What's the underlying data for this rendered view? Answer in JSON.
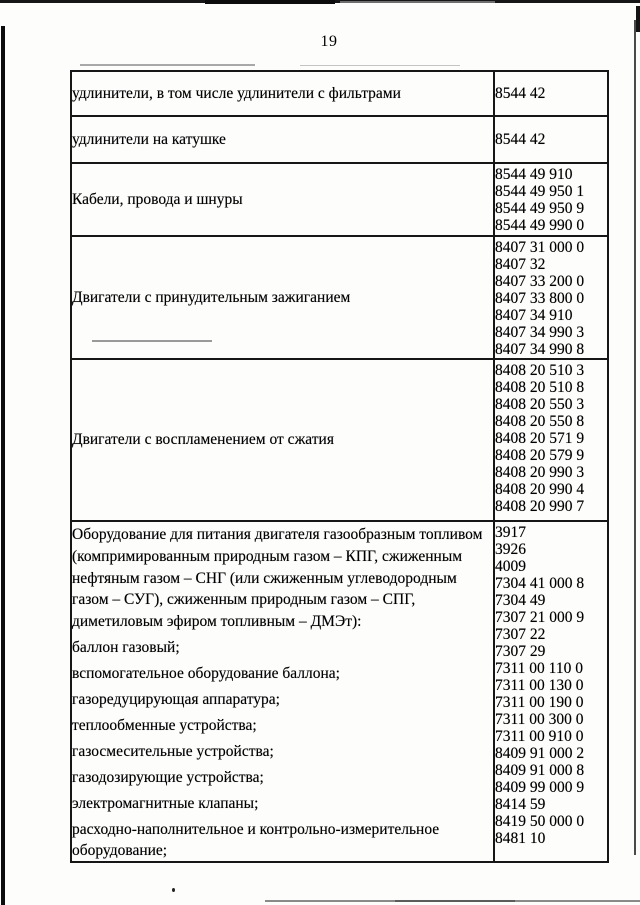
{
  "page": {
    "number": "19"
  },
  "table": {
    "rows": [
      {
        "description": "удлинители, в том числе удлинители с фильтрами",
        "codes": [
          "8544 42"
        ]
      },
      {
        "description": "удлинители на катушке",
        "codes": [
          "8544 42"
        ]
      },
      {
        "description": "Кабели, провода и шнуры",
        "codes": [
          "8544 49 910",
          "8544 49 950 1",
          "8544 49 950 9",
          "8544 49 990 0"
        ]
      },
      {
        "description": "Двигатели с принудительным зажиганием",
        "codes": [
          "8407 31 000 0",
          "8407 32",
          "8407 33 200 0",
          "8407 33 800 0",
          "8407 34 910",
          "8407 34 990 3",
          "8407 34 990 8"
        ]
      },
      {
        "description": "Двигатели с воспламенением от сжатия",
        "codes": [
          "8408 20 510 3",
          "8408 20 510 8",
          "8408 20 550 3",
          "8408 20 550 8",
          "8408 20 571 9",
          "8408 20 579 9",
          "8408 20 990 3",
          "8408 20 990 4",
          "8408 20 990 7"
        ]
      },
      {
        "description_intro": "Оборудование для питания двигателя газообразным топливом (компримированным природным газом – КПГ, сжиженным нефтяным газом – СНГ (или сжиженным углеводородным газом – СУГ), сжиженным природным газом – СПГ, диметиловым эфиром топливным – ДМЭт):",
        "items": [
          "баллон газовый;",
          "вспомогательное оборудование баллона;",
          "газоредуцирующая аппаратура;",
          "теплообменные устройства;",
          "газосмесительные устройства;",
          "газодозирующие устройства;",
          "электромагнитные клапаны;",
          "расходно-наполнительное и контрольно-измерительное оборудование;"
        ],
        "codes": [
          "3917",
          "3926",
          "4009",
          "7304 41 000 8",
          "7304 49",
          "7307 21 000 9",
          "7307 22",
          "7307 29",
          "7311 00 110 0",
          "7311 00 130 0",
          "7311 00 190 0",
          "7311 00 300 0",
          "7311 00 910 0",
          "8409 91 000 2",
          "8409 91 000 8",
          "8409 99 000 9",
          "8414 59",
          "8419 50 000 0",
          "8481 10"
        ]
      }
    ]
  }
}
